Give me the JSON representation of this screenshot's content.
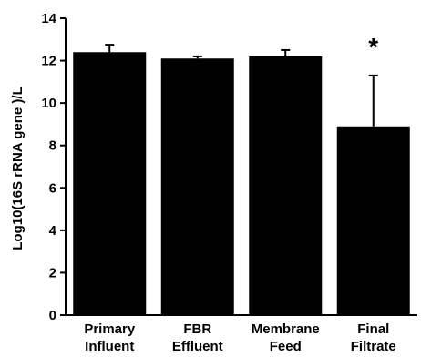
{
  "chart_data": {
    "type": "bar",
    "title": "",
    "xlabel": "",
    "ylabel": "Log10(16S rRNA gene )/L",
    "ylim": [
      0,
      14
    ],
    "yticks": [
      0,
      2,
      4,
      6,
      8,
      10,
      12,
      14
    ],
    "grid": false,
    "categories": [
      [
        "Primary",
        "Influent"
      ],
      [
        "FBR",
        "Effluent"
      ],
      [
        "Membrane",
        "Feed"
      ],
      [
        "Final",
        "Filtrate"
      ]
    ],
    "values": [
      12.4,
      12.1,
      12.2,
      8.9
    ],
    "error_upper": [
      0.35,
      0.1,
      0.3,
      2.4
    ],
    "annotations": [
      {
        "category_index": 3,
        "text": "*"
      }
    ],
    "colors": {
      "bar": "#000000",
      "axis": "#000000"
    }
  }
}
